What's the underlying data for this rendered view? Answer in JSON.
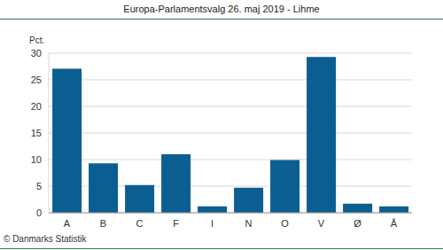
{
  "chart_data": {
    "type": "bar",
    "title": "Europa-Parlamentsvalg 26. maj 2019 - Lihme",
    "ylabel": "Pct.",
    "annotation": "© Danmarks Statistik",
    "categories": [
      "A",
      "B",
      "C",
      "F",
      "I",
      "N",
      "O",
      "V",
      "Ø",
      "Å"
    ],
    "values": [
      27.1,
      9.3,
      5.2,
      11.0,
      1.2,
      4.7,
      9.9,
      29.3,
      1.7,
      1.2
    ],
    "color": "#0b5e92",
    "ylim": [
      0,
      30
    ],
    "yticks": [
      0,
      5,
      10,
      15,
      20,
      25,
      30
    ],
    "grid": true
  }
}
